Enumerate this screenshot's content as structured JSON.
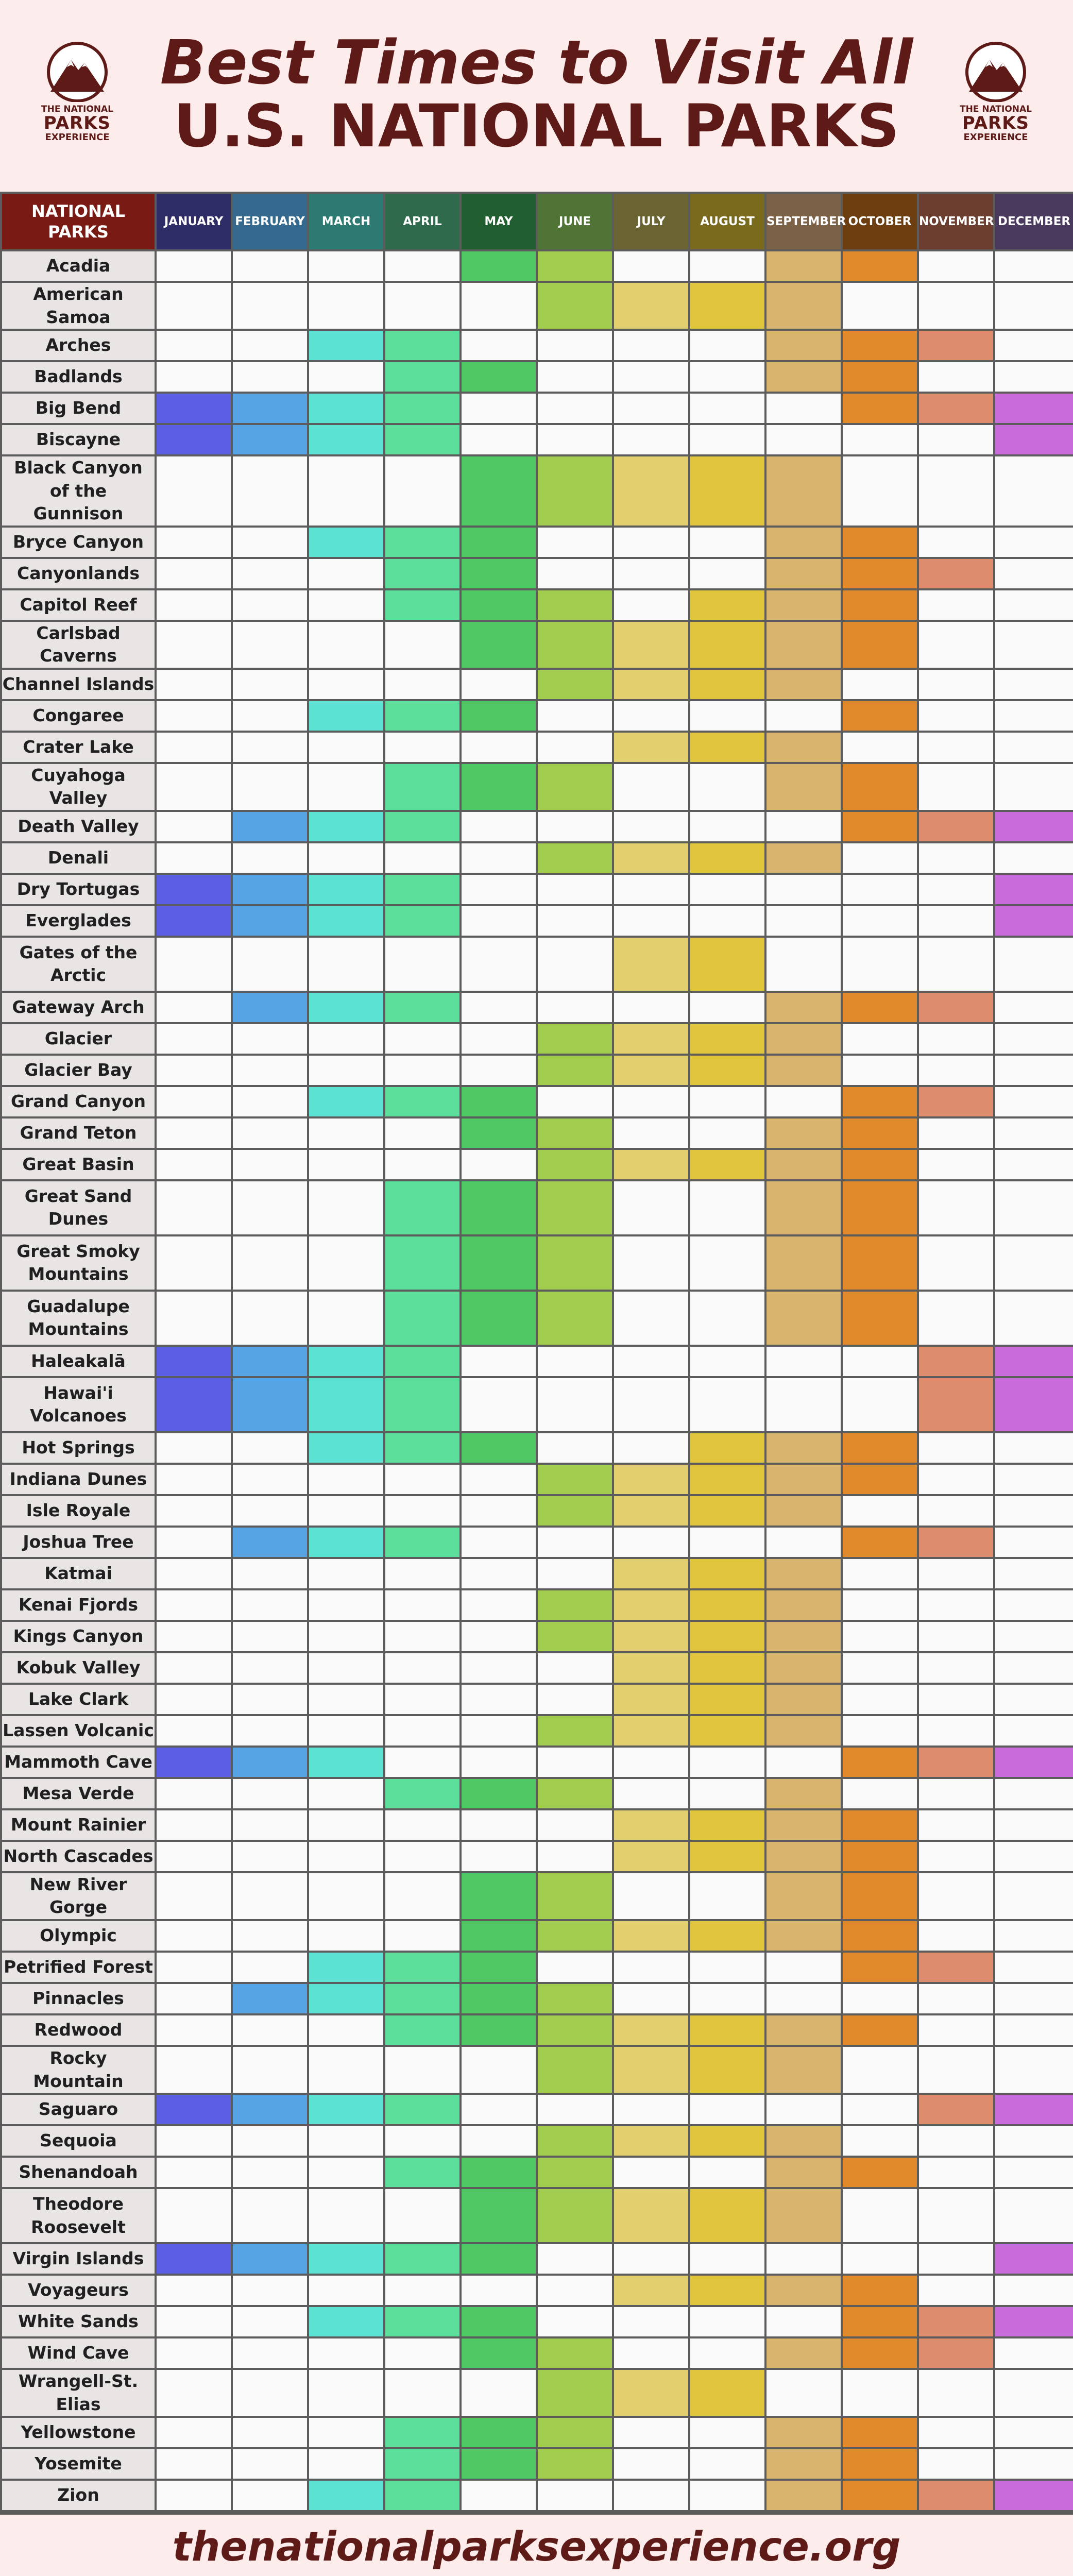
{
  "title_line1": "Best Times to Visit All",
  "title_line2": "U.S. NATIONAL PARKS",
  "logo": {
    "line1": "THE NATIONAL",
    "line2": "PARKS",
    "line3": "EXPERIENCE",
    "icon": "mountain-logo-icon"
  },
  "park_header": "NATIONAL PARKS",
  "months": [
    "JANUARY",
    "FEBRUARY",
    "MARCH",
    "APRIL",
    "MAY",
    "JUNE",
    "JULY",
    "AUGUST",
    "SEPTEMBER",
    "OCTOBER",
    "NOVEMBER",
    "DECEMBER"
  ],
  "month_colors": [
    "#2e2c66",
    "#356a8e",
    "#2d7a72",
    "#2f6a4c",
    "#215e30",
    "#4f7436",
    "#6a6433",
    "#7a6a1e",
    "#7b6146",
    "#6c3e10",
    "#6c3e30",
    "#4a3a5e"
  ],
  "highlight_colors": [
    "#5a5fe6",
    "#56a4e4",
    "#5ce2d2",
    "#5ddf9c",
    "#4ec964",
    "#a2cc4e",
    "#e2d06e",
    "#e1c63d",
    "#d9b46e",
    "#e08a2c",
    "#de8c6e",
    "#c86cdc"
  ],
  "parks": [
    {
      "name": "Acadia",
      "months": [
        0,
        0,
        0,
        0,
        1,
        1,
        0,
        0,
        1,
        1,
        0,
        0
      ]
    },
    {
      "name": "American Samoa",
      "months": [
        0,
        0,
        0,
        0,
        0,
        1,
        1,
        1,
        1,
        0,
        0,
        0
      ]
    },
    {
      "name": "Arches",
      "months": [
        0,
        0,
        1,
        1,
        0,
        0,
        0,
        0,
        1,
        1,
        1,
        0
      ]
    },
    {
      "name": "Badlands",
      "months": [
        0,
        0,
        0,
        1,
        1,
        0,
        0,
        0,
        1,
        1,
        0,
        0
      ]
    },
    {
      "name": "Big Bend",
      "months": [
        1,
        1,
        1,
        1,
        0,
        0,
        0,
        0,
        0,
        1,
        1,
        1
      ]
    },
    {
      "name": "Biscayne",
      "months": [
        1,
        1,
        1,
        1,
        0,
        0,
        0,
        0,
        0,
        0,
        0,
        1
      ]
    },
    {
      "name": "Black Canyon of the Gunnison",
      "months": [
        0,
        0,
        0,
        0,
        1,
        1,
        1,
        1,
        1,
        0,
        0,
        0
      ]
    },
    {
      "name": "Bryce Canyon",
      "months": [
        0,
        0,
        1,
        1,
        1,
        0,
        0,
        0,
        1,
        1,
        0,
        0
      ]
    },
    {
      "name": "Canyonlands",
      "months": [
        0,
        0,
        0,
        1,
        1,
        0,
        0,
        0,
        1,
        1,
        1,
        0
      ]
    },
    {
      "name": "Capitol Reef",
      "months": [
        0,
        0,
        0,
        1,
        1,
        1,
        0,
        1,
        1,
        1,
        0,
        0
      ]
    },
    {
      "name": "Carlsbad Caverns",
      "months": [
        0,
        0,
        0,
        0,
        1,
        1,
        1,
        1,
        1,
        1,
        0,
        0
      ]
    },
    {
      "name": "Channel Islands",
      "months": [
        0,
        0,
        0,
        0,
        0,
        1,
        1,
        1,
        1,
        0,
        0,
        0
      ]
    },
    {
      "name": "Congaree",
      "months": [
        0,
        0,
        1,
        1,
        1,
        0,
        0,
        0,
        0,
        1,
        0,
        0
      ]
    },
    {
      "name": "Crater Lake",
      "months": [
        0,
        0,
        0,
        0,
        0,
        0,
        1,
        1,
        1,
        0,
        0,
        0
      ]
    },
    {
      "name": "Cuyahoga Valley",
      "months": [
        0,
        0,
        0,
        1,
        1,
        1,
        0,
        0,
        1,
        1,
        0,
        0
      ]
    },
    {
      "name": "Death Valley",
      "months": [
        0,
        1,
        1,
        1,
        0,
        0,
        0,
        0,
        0,
        1,
        1,
        1
      ]
    },
    {
      "name": "Denali",
      "months": [
        0,
        0,
        0,
        0,
        0,
        1,
        1,
        1,
        1,
        0,
        0,
        0
      ]
    },
    {
      "name": "Dry Tortugas",
      "months": [
        1,
        1,
        1,
        1,
        0,
        0,
        0,
        0,
        0,
        0,
        0,
        1
      ]
    },
    {
      "name": "Everglades",
      "months": [
        1,
        1,
        1,
        1,
        0,
        0,
        0,
        0,
        0,
        0,
        0,
        1
      ]
    },
    {
      "name": "Gates of the Arctic",
      "months": [
        0,
        0,
        0,
        0,
        0,
        0,
        1,
        1,
        0,
        0,
        0,
        0
      ]
    },
    {
      "name": "Gateway Arch",
      "months": [
        0,
        1,
        1,
        1,
        0,
        0,
        0,
        0,
        1,
        1,
        1,
        0
      ]
    },
    {
      "name": "Glacier",
      "months": [
        0,
        0,
        0,
        0,
        0,
        1,
        1,
        1,
        1,
        0,
        0,
        0
      ]
    },
    {
      "name": "Glacier Bay",
      "months": [
        0,
        0,
        0,
        0,
        0,
        1,
        1,
        1,
        1,
        0,
        0,
        0
      ]
    },
    {
      "name": "Grand Canyon",
      "months": [
        0,
        0,
        1,
        1,
        1,
        0,
        0,
        0,
        0,
        1,
        1,
        0
      ]
    },
    {
      "name": "Grand Teton",
      "months": [
        0,
        0,
        0,
        0,
        1,
        1,
        0,
        0,
        1,
        1,
        0,
        0
      ]
    },
    {
      "name": "Great Basin",
      "months": [
        0,
        0,
        0,
        0,
        0,
        1,
        1,
        1,
        1,
        1,
        0,
        0
      ]
    },
    {
      "name": "Great Sand Dunes",
      "months": [
        0,
        0,
        0,
        1,
        1,
        1,
        0,
        0,
        1,
        1,
        0,
        0
      ]
    },
    {
      "name": "Great Smoky Mountains",
      "months": [
        0,
        0,
        0,
        1,
        1,
        1,
        0,
        0,
        1,
        1,
        0,
        0
      ]
    },
    {
      "name": "Guadalupe Mountains",
      "months": [
        0,
        0,
        0,
        1,
        1,
        1,
        0,
        0,
        1,
        1,
        0,
        0
      ]
    },
    {
      "name": "Haleakalā",
      "months": [
        1,
        1,
        1,
        1,
        0,
        0,
        0,
        0,
        0,
        0,
        1,
        1
      ]
    },
    {
      "name": "Hawai'i Volcanoes",
      "months": [
        1,
        1,
        1,
        1,
        0,
        0,
        0,
        0,
        0,
        0,
        1,
        1
      ]
    },
    {
      "name": "Hot Springs",
      "months": [
        0,
        0,
        1,
        1,
        1,
        0,
        0,
        1,
        1,
        1,
        0,
        0
      ]
    },
    {
      "name": "Indiana Dunes",
      "months": [
        0,
        0,
        0,
        0,
        0,
        1,
        1,
        1,
        1,
        1,
        0,
        0
      ]
    },
    {
      "name": "Isle Royale",
      "months": [
        0,
        0,
        0,
        0,
        0,
        1,
        1,
        1,
        1,
        0,
        0,
        0
      ]
    },
    {
      "name": "Joshua Tree",
      "months": [
        0,
        1,
        1,
        1,
        0,
        0,
        0,
        0,
        0,
        1,
        1,
        0
      ]
    },
    {
      "name": "Katmai",
      "months": [
        0,
        0,
        0,
        0,
        0,
        0,
        1,
        1,
        1,
        0,
        0,
        0
      ]
    },
    {
      "name": "Kenai Fjords",
      "months": [
        0,
        0,
        0,
        0,
        0,
        1,
        1,
        1,
        1,
        0,
        0,
        0
      ]
    },
    {
      "name": "Kings Canyon",
      "months": [
        0,
        0,
        0,
        0,
        0,
        1,
        1,
        1,
        1,
        0,
        0,
        0
      ]
    },
    {
      "name": "Kobuk Valley",
      "months": [
        0,
        0,
        0,
        0,
        0,
        0,
        1,
        1,
        1,
        0,
        0,
        0
      ]
    },
    {
      "name": "Lake Clark",
      "months": [
        0,
        0,
        0,
        0,
        0,
        0,
        1,
        1,
        1,
        0,
        0,
        0
      ]
    },
    {
      "name": "Lassen Volcanic",
      "months": [
        0,
        0,
        0,
        0,
        0,
        1,
        1,
        1,
        1,
        0,
        0,
        0
      ]
    },
    {
      "name": "Mammoth Cave",
      "months": [
        1,
        1,
        1,
        0,
        0,
        0,
        0,
        0,
        0,
        1,
        1,
        1
      ]
    },
    {
      "name": "Mesa Verde",
      "months": [
        0,
        0,
        0,
        1,
        1,
        1,
        0,
        0,
        1,
        0,
        0,
        0
      ]
    },
    {
      "name": "Mount Rainier",
      "months": [
        0,
        0,
        0,
        0,
        0,
        0,
        1,
        1,
        1,
        1,
        0,
        0
      ]
    },
    {
      "name": "North Cascades",
      "months": [
        0,
        0,
        0,
        0,
        0,
        0,
        1,
        1,
        1,
        1,
        0,
        0
      ]
    },
    {
      "name": "New River Gorge",
      "months": [
        0,
        0,
        0,
        0,
        1,
        1,
        0,
        0,
        1,
        1,
        0,
        0
      ]
    },
    {
      "name": "Olympic",
      "months": [
        0,
        0,
        0,
        0,
        1,
        1,
        1,
        1,
        1,
        1,
        0,
        0
      ]
    },
    {
      "name": "Petrified Forest",
      "months": [
        0,
        0,
        1,
        1,
        1,
        0,
        0,
        0,
        0,
        1,
        1,
        0
      ]
    },
    {
      "name": "Pinnacles",
      "months": [
        0,
        1,
        1,
        1,
        1,
        1,
        0,
        0,
        0,
        0,
        0,
        0
      ]
    },
    {
      "name": "Redwood",
      "months": [
        0,
        0,
        0,
        1,
        1,
        1,
        1,
        1,
        1,
        1,
        0,
        0
      ]
    },
    {
      "name": "Rocky Mountain",
      "months": [
        0,
        0,
        0,
        0,
        0,
        1,
        1,
        1,
        1,
        0,
        0,
        0
      ]
    },
    {
      "name": "Saguaro",
      "months": [
        1,
        1,
        1,
        1,
        0,
        0,
        0,
        0,
        0,
        0,
        1,
        1
      ]
    },
    {
      "name": "Sequoia",
      "months": [
        0,
        0,
        0,
        0,
        0,
        1,
        1,
        1,
        1,
        0,
        0,
        0
      ]
    },
    {
      "name": "Shenandoah",
      "months": [
        0,
        0,
        0,
        1,
        1,
        1,
        0,
        0,
        1,
        1,
        0,
        0
      ]
    },
    {
      "name": "Theodore Roosevelt",
      "months": [
        0,
        0,
        0,
        0,
        1,
        1,
        1,
        1,
        1,
        0,
        0,
        0
      ]
    },
    {
      "name": "Virgin Islands",
      "months": [
        1,
        1,
        1,
        1,
        1,
        0,
        0,
        0,
        0,
        0,
        0,
        1
      ]
    },
    {
      "name": "Voyageurs",
      "months": [
        0,
        0,
        0,
        0,
        0,
        0,
        1,
        1,
        1,
        1,
        0,
        0
      ]
    },
    {
      "name": "White Sands",
      "months": [
        0,
        0,
        1,
        1,
        1,
        0,
        0,
        0,
        0,
        1,
        1,
        1
      ]
    },
    {
      "name": "Wind Cave",
      "months": [
        0,
        0,
        0,
        0,
        1,
        1,
        0,
        0,
        1,
        1,
        1,
        0
      ]
    },
    {
      "name": "Wrangell-St. Elias",
      "months": [
        0,
        0,
        0,
        0,
        0,
        1,
        1,
        1,
        0,
        0,
        0,
        0
      ]
    },
    {
      "name": "Yellowstone",
      "months": [
        0,
        0,
        0,
        1,
        1,
        1,
        0,
        0,
        1,
        1,
        0,
        0
      ]
    },
    {
      "name": "Yosemite",
      "months": [
        0,
        0,
        0,
        1,
        1,
        1,
        0,
        0,
        1,
        1,
        0,
        0
      ]
    },
    {
      "name": "Zion",
      "months": [
        0,
        0,
        1,
        1,
        0,
        0,
        0,
        0,
        1,
        1,
        1,
        1
      ]
    }
  ],
  "footer_url": "thenationalparksexperience.org"
}
